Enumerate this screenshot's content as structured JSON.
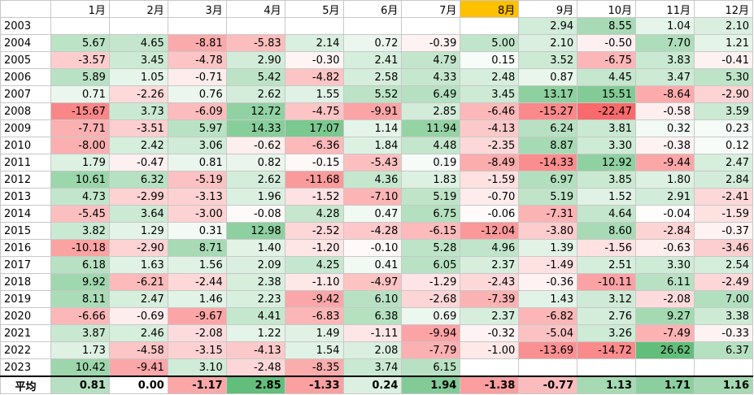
{
  "table": {
    "columns": [
      "1月",
      "2月",
      "3月",
      "4月",
      "5月",
      "6月",
      "7月",
      "8月",
      "9月",
      "10月",
      "11月",
      "12月"
    ],
    "rows": [
      {
        "label": "2003",
        "cells": [
          null,
          null,
          null,
          null,
          null,
          null,
          null,
          null,
          "2.94",
          "8.55",
          "1.04",
          "2.10"
        ]
      },
      {
        "label": "2004",
        "cells": [
          "5.67",
          "4.65",
          "-8.81",
          "-5.83",
          "2.14",
          "0.72",
          "-0.39",
          "5.00",
          "2.10",
          "-0.50",
          "7.70",
          "1.21"
        ]
      },
      {
        "label": "2005",
        "cells": [
          "-3.57",
          "3.45",
          "-4.78",
          "2.90",
          "-0.30",
          "2.41",
          "4.79",
          "0.15",
          "3.52",
          "-6.75",
          "3.83",
          "-0.41"
        ]
      },
      {
        "label": "2006",
        "cells": [
          "5.89",
          "1.05",
          "-0.71",
          "5.42",
          "-4.82",
          "2.58",
          "4.33",
          "2.48",
          "0.87",
          "4.45",
          "3.47",
          "5.30"
        ]
      },
      {
        "label": "2007",
        "cells": [
          "0.71",
          "-2.26",
          "0.76",
          "2.62",
          "1.55",
          "5.52",
          "6.49",
          "3.45",
          "13.17",
          "15.51",
          "-8.64",
          "-2.90"
        ]
      },
      {
        "label": "2008",
        "cells": [
          "-15.67",
          "3.73",
          "-6.09",
          "12.72",
          "-4.75",
          "-9.91",
          "2.85",
          "-6.46",
          "-15.27",
          "-22.47",
          "-0.58",
          "3.59"
        ]
      },
      {
        "label": "2009",
        "cells": [
          "-7.71",
          "-3.51",
          "5.97",
          "14.33",
          "17.07",
          "1.14",
          "11.94",
          "-4.13",
          "6.24",
          "3.81",
          "0.32",
          "0.23"
        ]
      },
      {
        "label": "2010",
        "cells": [
          "-8.00",
          "2.42",
          "3.06",
          "-0.62",
          "-6.36",
          "1.84",
          "4.48",
          "-2.35",
          "8.87",
          "3.30",
          "-0.38",
          "0.12"
        ]
      },
      {
        "label": "2011",
        "cells": [
          "1.79",
          "-0.47",
          "0.81",
          "0.82",
          "-0.15",
          "-5.43",
          "0.19",
          "-8.49",
          "-14.33",
          "12.92",
          "-9.44",
          "2.47"
        ]
      },
      {
        "label": "2012",
        "cells": [
          "10.61",
          "6.32",
          "-5.19",
          "2.62",
          "-11.68",
          "4.36",
          "1.83",
          "-1.59",
          "6.97",
          "3.85",
          "1.80",
          "2.84"
        ]
      },
      {
        "label": "2013",
        "cells": [
          "4.73",
          "-2.99",
          "-3.13",
          "1.96",
          "-1.52",
          "-7.10",
          "5.19",
          "-0.70",
          "5.19",
          "1.52",
          "2.91",
          "-2.41"
        ]
      },
      {
        "label": "2014",
        "cells": [
          "-5.45",
          "3.64",
          "-3.00",
          "-0.08",
          "4.28",
          "0.47",
          "6.75",
          "-0.06",
          "-7.31",
          "4.64",
          "-0.04",
          "-1.59"
        ]
      },
      {
        "label": "2015",
        "cells": [
          "3.82",
          "1.29",
          "0.31",
          "12.98",
          "-2.52",
          "-4.28",
          "-6.15",
          "-12.04",
          "-3.80",
          "8.60",
          "-2.84",
          "-0.37"
        ]
      },
      {
        "label": "2016",
        "cells": [
          "-10.18",
          "-2.90",
          "8.71",
          "1.40",
          "-1.20",
          "-0.10",
          "5.28",
          "4.96",
          "1.39",
          "-1.56",
          "-0.63",
          "-3.46"
        ]
      },
      {
        "label": "2017",
        "cells": [
          "6.18",
          "1.63",
          "1.56",
          "2.09",
          "4.25",
          "0.41",
          "6.05",
          "2.37",
          "-1.49",
          "2.51",
          "3.30",
          "2.54"
        ]
      },
      {
        "label": "2018",
        "cells": [
          "9.92",
          "-6.21",
          "-2.44",
          "2.38",
          "-1.10",
          "-4.97",
          "-1.29",
          "-2.43",
          "-0.36",
          "-10.11",
          "6.11",
          "-2.49"
        ]
      },
      {
        "label": "2019",
        "cells": [
          "8.11",
          "2.47",
          "1.46",
          "2.23",
          "-9.42",
          "6.10",
          "-2.68",
          "-7.39",
          "1.43",
          "3.12",
          "-2.08",
          "7.00"
        ]
      },
      {
        "label": "2020",
        "cells": [
          "-6.66",
          "-0.69",
          "-9.67",
          "4.41",
          "-6.83",
          "6.38",
          "0.69",
          "2.37",
          "-6.82",
          "2.76",
          "9.27",
          "3.38"
        ]
      },
      {
        "label": "2021",
        "cells": [
          "3.87",
          "2.46",
          "-2.08",
          "1.22",
          "1.49",
          "-1.11",
          "-9.94",
          "-0.32",
          "-5.04",
          "3.26",
          "-7.49",
          "-0.33"
        ]
      },
      {
        "label": "2022",
        "cells": [
          "1.73",
          "-4.58",
          "-3.15",
          "-4.13",
          "1.54",
          "2.08",
          "-7.79",
          "-1.00",
          "-13.69",
          "-14.72",
          "26.62",
          "6.37"
        ]
      },
      {
        "label": "2023",
        "cells": [
          "10.42",
          "-9.41",
          "3.10",
          "-2.48",
          "-8.35",
          "3.74",
          "6.15",
          null,
          null,
          null,
          null,
          null
        ]
      }
    ],
    "average": {
      "label": "平均",
      "cells": [
        "0.81",
        "0.00",
        "-1.17",
        "2.85",
        "-1.33",
        "0.24",
        "1.94",
        "-1.38",
        "-0.77",
        "1.13",
        "1.71",
        "1.16"
      ]
    }
  }
}
